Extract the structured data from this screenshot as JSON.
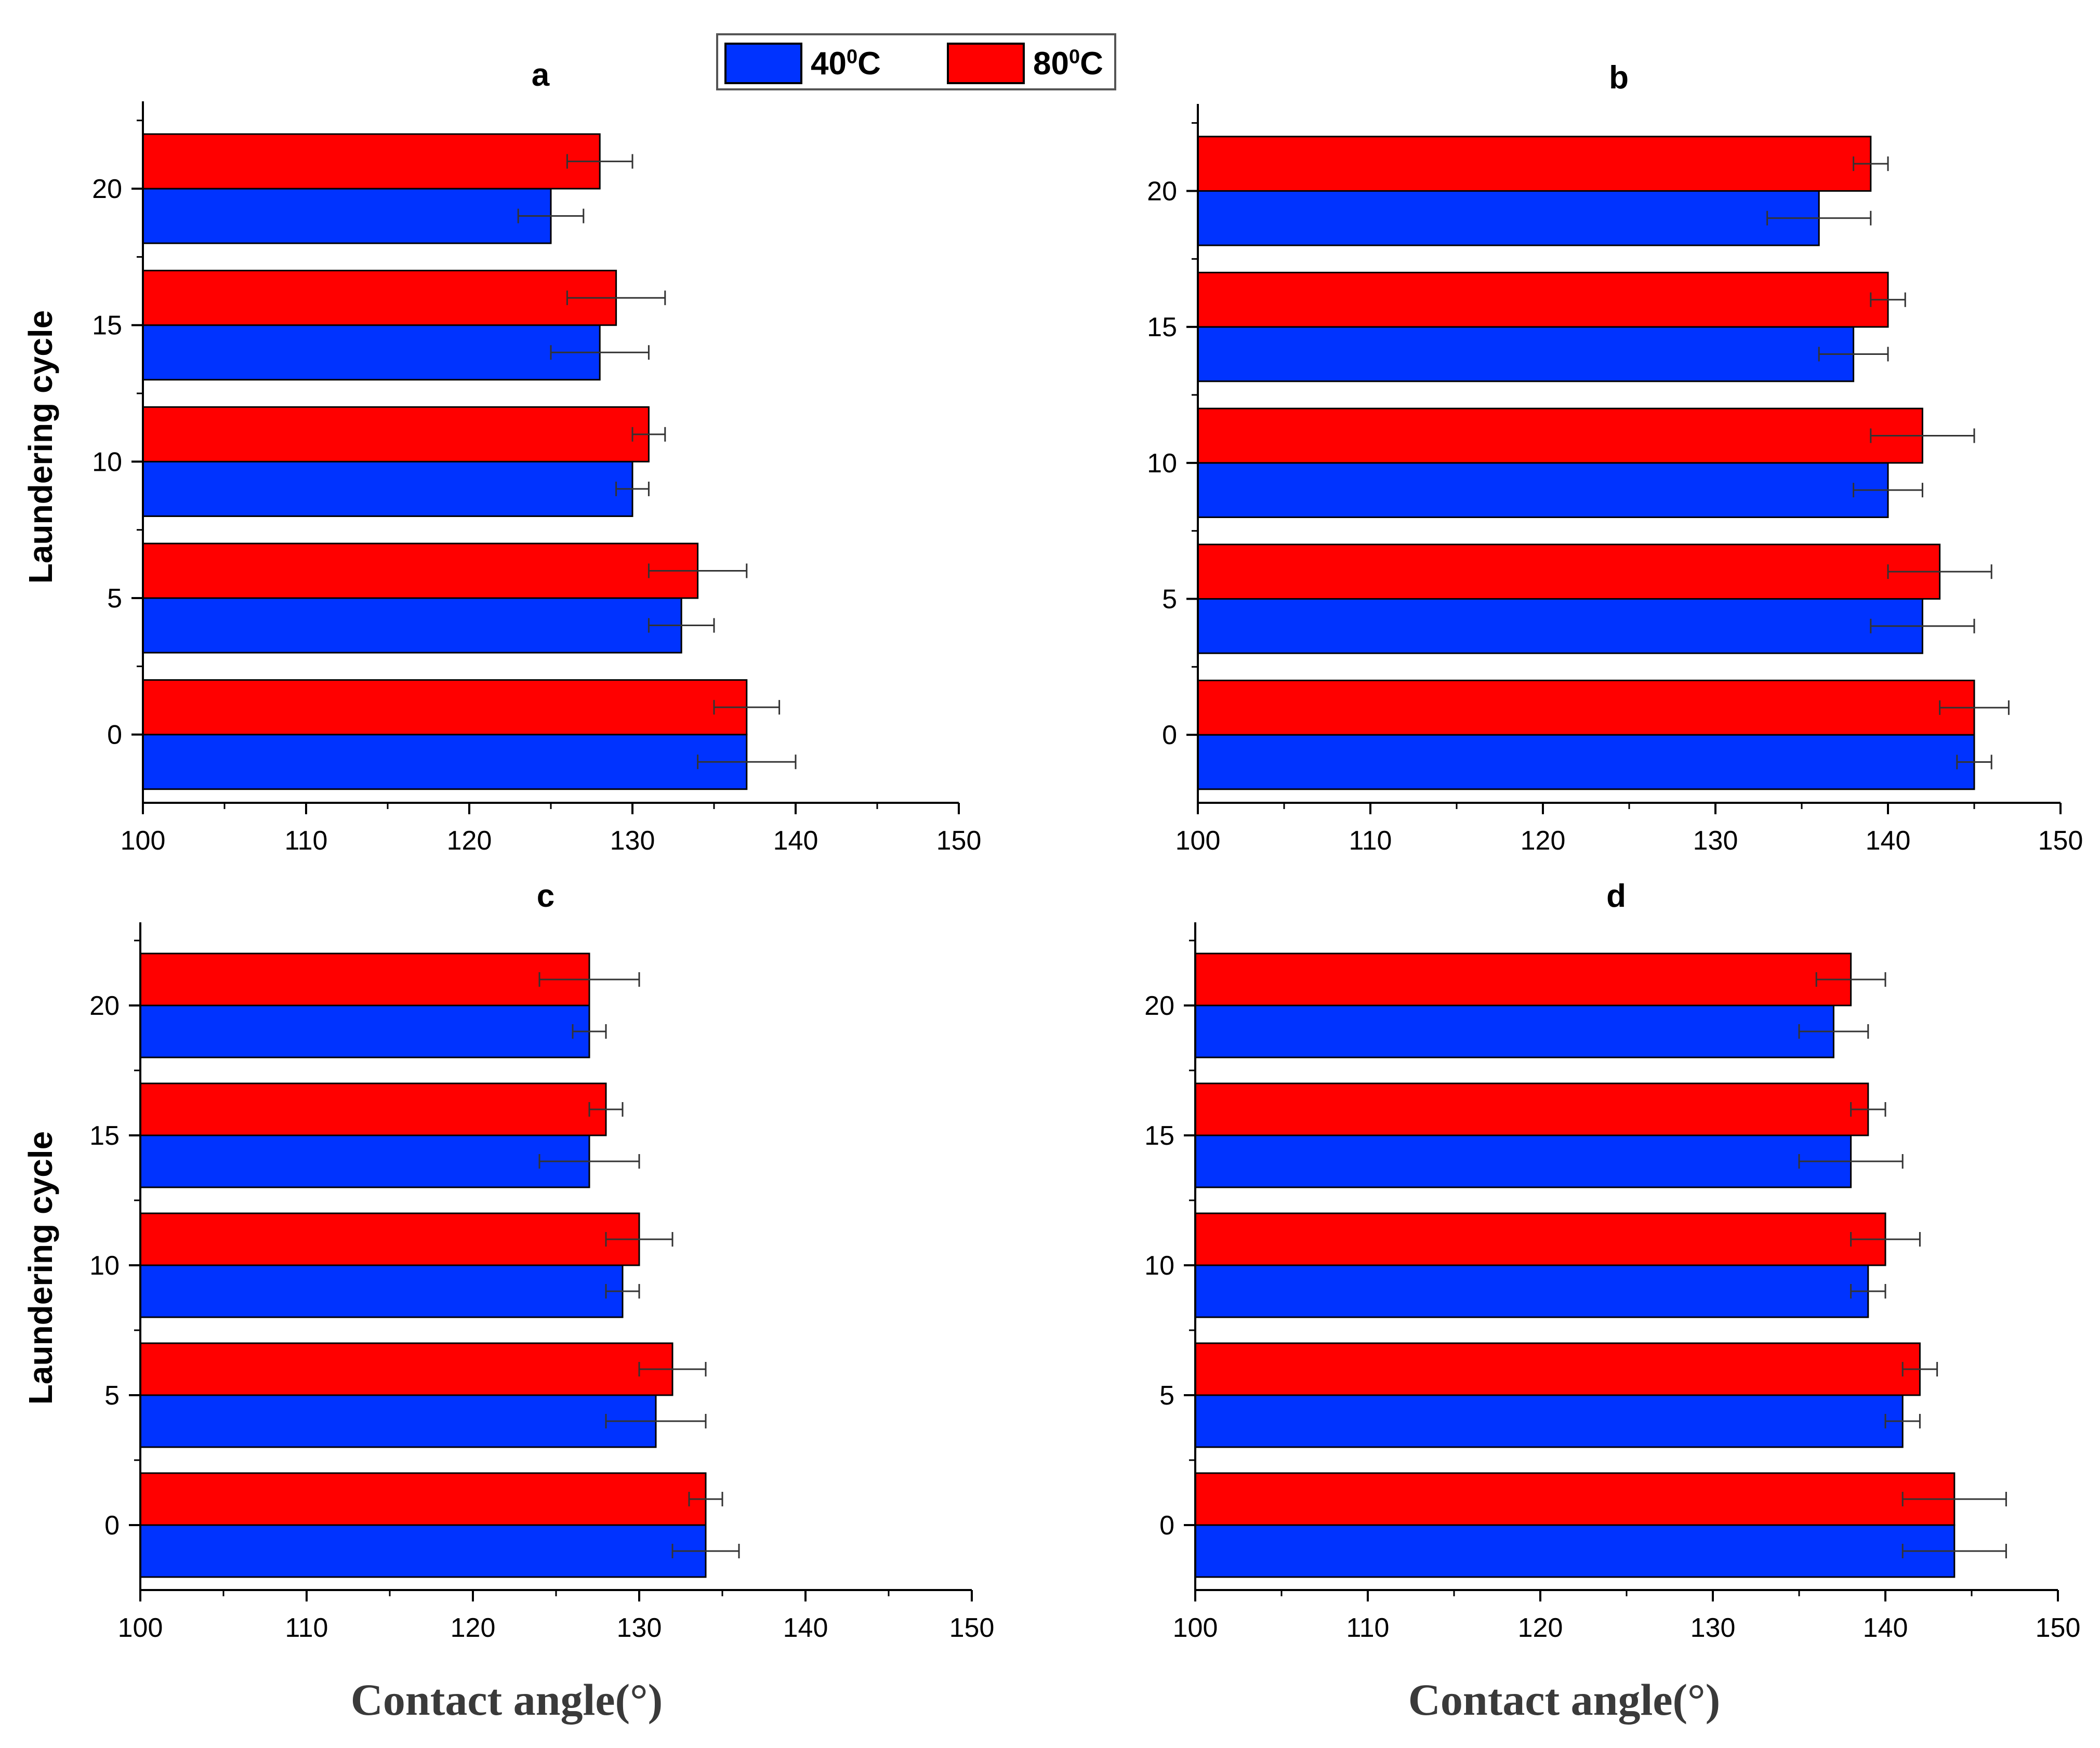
{
  "legend": {
    "items": [
      {
        "label": "40",
        "sup": "0",
        "suffix": "C",
        "color": "#0033FF"
      },
      {
        "label": "80",
        "sup": "0",
        "suffix": "C",
        "color": "#FF0000"
      }
    ]
  },
  "axes": {
    "ylabel": "Laundering cycle",
    "xlabel": "Contact angle(°)"
  },
  "chart_data": [
    {
      "type": "bar",
      "orientation": "horizontal",
      "title": "a",
      "categories": [
        "0",
        "5",
        "10",
        "15",
        "20"
      ],
      "xlim": [
        100,
        150
      ],
      "xticks": [
        100,
        110,
        120,
        130,
        140,
        150
      ],
      "series": [
        {
          "name": "40°C",
          "color": "#0033FF",
          "values": [
            137,
            133,
            130,
            128,
            125
          ],
          "errors": [
            3,
            2,
            1,
            3,
            2
          ]
        },
        {
          "name": "80°C",
          "color": "#FF0000",
          "values": [
            137,
            134,
            131,
            129,
            128
          ],
          "errors": [
            2,
            3,
            1,
            3,
            2
          ]
        }
      ]
    },
    {
      "type": "bar",
      "orientation": "horizontal",
      "title": "b",
      "categories": [
        "0",
        "5",
        "10",
        "15",
        "20"
      ],
      "xlim": [
        100,
        150
      ],
      "xticks": [
        100,
        110,
        120,
        130,
        140,
        150
      ],
      "series": [
        {
          "name": "40°C",
          "color": "#0033FF",
          "values": [
            145,
            142,
            140,
            138,
            136
          ],
          "errors": [
            1,
            3,
            2,
            2,
            3
          ]
        },
        {
          "name": "80°C",
          "color": "#FF0000",
          "values": [
            145,
            143,
            142,
            140,
            139
          ],
          "errors": [
            2,
            3,
            3,
            1,
            1
          ]
        }
      ]
    },
    {
      "type": "bar",
      "orientation": "horizontal",
      "title": "c",
      "categories": [
        "0",
        "5",
        "10",
        "15",
        "20"
      ],
      "xlim": [
        100,
        150
      ],
      "xticks": [
        100,
        110,
        120,
        130,
        140,
        150
      ],
      "series": [
        {
          "name": "40°C",
          "color": "#0033FF",
          "values": [
            134,
            131,
            129,
            127,
            127
          ],
          "errors": [
            2,
            3,
            1,
            3,
            1
          ]
        },
        {
          "name": "80°C",
          "color": "#FF0000",
          "values": [
            134,
            132,
            130,
            128,
            127
          ],
          "errors": [
            1,
            2,
            2,
            1,
            3
          ]
        }
      ]
    },
    {
      "type": "bar",
      "orientation": "horizontal",
      "title": "d",
      "categories": [
        "0",
        "5",
        "10",
        "15",
        "20"
      ],
      "xlim": [
        100,
        150
      ],
      "xticks": [
        100,
        110,
        120,
        130,
        140,
        150
      ],
      "series": [
        {
          "name": "40°C",
          "color": "#0033FF",
          "values": [
            144,
            141,
            139,
            138,
            137
          ],
          "errors": [
            3,
            1,
            1,
            3,
            2
          ]
        },
        {
          "name": "80°C",
          "color": "#FF0000",
          "values": [
            144,
            142,
            140,
            139,
            138
          ],
          "errors": [
            3,
            1,
            2,
            1,
            2
          ]
        }
      ]
    }
  ]
}
